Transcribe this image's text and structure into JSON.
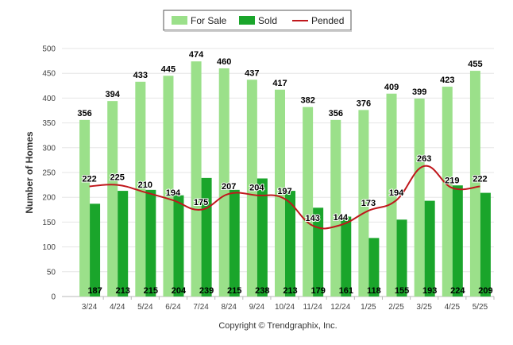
{
  "chart_data": {
    "type": "bar",
    "ylabel": "Number of Homes",
    "ylim": [
      0,
      500
    ],
    "yticks": [
      0,
      50,
      100,
      150,
      200,
      250,
      300,
      350,
      400,
      450,
      500
    ],
    "grid": true,
    "legend_position": "top-center",
    "categories": [
      "3/24",
      "4/24",
      "5/24",
      "6/24",
      "7/24",
      "8/24",
      "9/24",
      "10/24",
      "11/24",
      "12/24",
      "1/25",
      "2/25",
      "3/25",
      "4/25",
      "5/25"
    ],
    "series": [
      {
        "name": "For Sale",
        "type": "bar",
        "color": "#9be08a",
        "values": [
          356,
          394,
          433,
          445,
          474,
          460,
          437,
          417,
          382,
          356,
          376,
          409,
          399,
          423,
          455
        ]
      },
      {
        "name": "Sold",
        "type": "bar",
        "color": "#1aa52b",
        "values": [
          187,
          213,
          215,
          204,
          239,
          215,
          238,
          213,
          179,
          161,
          118,
          155,
          193,
          224,
          209
        ]
      },
      {
        "name": "Pended",
        "type": "line",
        "color": "#c0171c",
        "values": [
          222,
          225,
          210,
          194,
          175,
          207,
          204,
          197,
          143,
          144,
          173,
          194,
          263,
          219,
          222
        ]
      }
    ]
  },
  "copyright": "Copyright © Trendgraphix, Inc."
}
